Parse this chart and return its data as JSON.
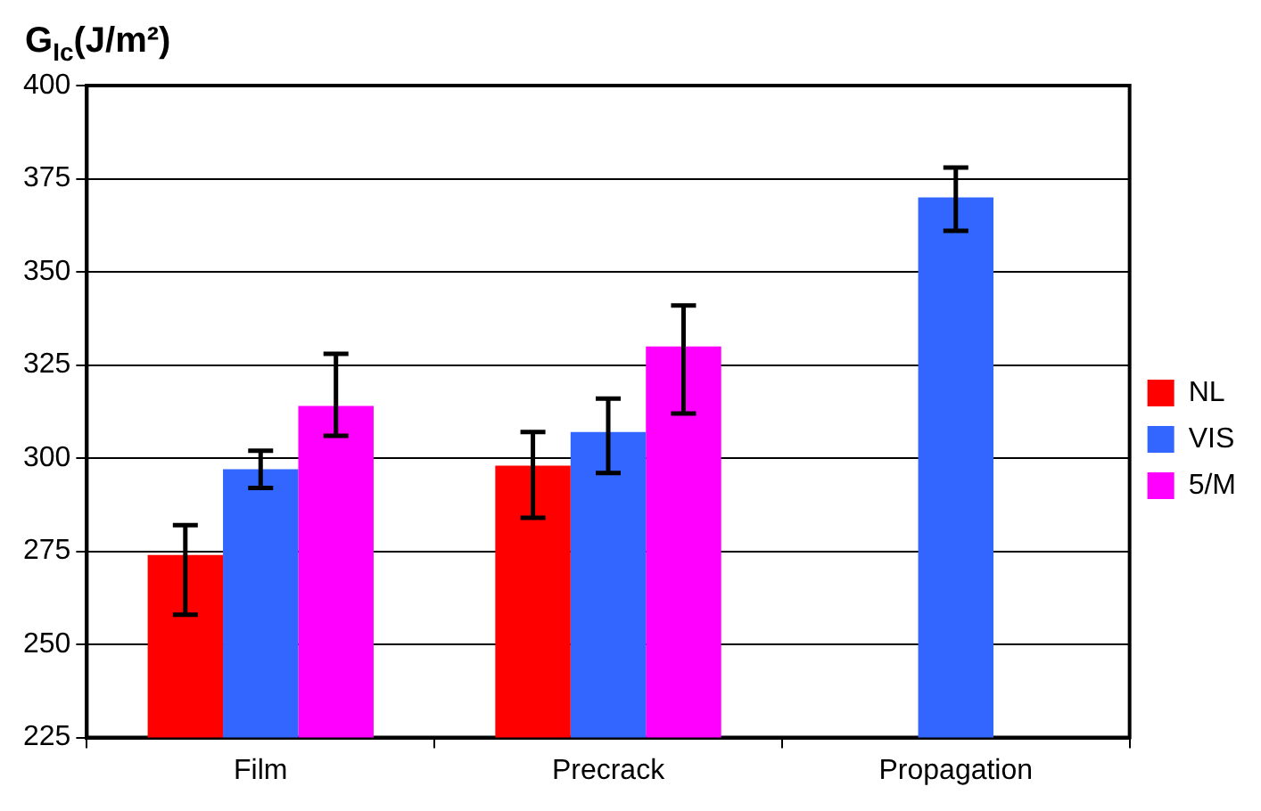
{
  "chart_data": {
    "type": "bar",
    "ylabel": "G$_{Ic}$(J/m²)",
    "categories": [
      "Film",
      "Precrack",
      "Propagation"
    ],
    "series": [
      {
        "name": "NL",
        "color": "#ff0000",
        "values": [
          274,
          298,
          null
        ],
        "errors": [
          [
            258,
            282
          ],
          [
            284,
            307
          ],
          null
        ]
      },
      {
        "name": "VIS",
        "color": "#3366ff",
        "values": [
          297,
          307,
          370
        ],
        "errors": [
          [
            292,
            302
          ],
          [
            296,
            316
          ],
          [
            361,
            378
          ]
        ]
      },
      {
        "name": "5/M",
        "color": "#ff00ff",
        "values": [
          314,
          330,
          null
        ],
        "errors": [
          [
            306,
            328
          ],
          [
            312,
            341
          ],
          null
        ]
      }
    ],
    "ylim": [
      225,
      400
    ],
    "yticks": [
      225,
      250,
      275,
      300,
      325,
      350,
      375,
      400
    ],
    "grid": "y",
    "legend": "right"
  }
}
